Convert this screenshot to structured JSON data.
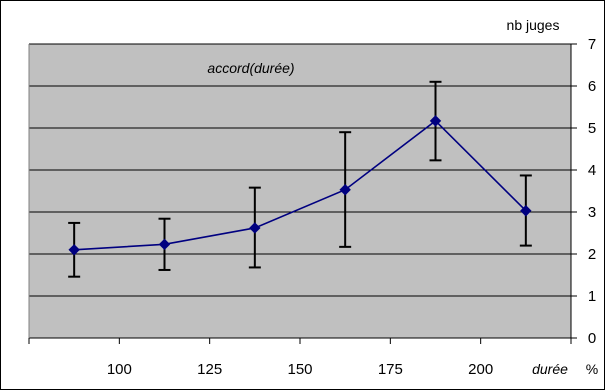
{
  "chart_data": {
    "type": "line",
    "title": "accord(durée)",
    "xlabel": "durée",
    "xunit": "%",
    "ylabel": "nb juges",
    "x": [
      87.5,
      112.5,
      137.5,
      162.5,
      187.5,
      212.5
    ],
    "x_ticks": [
      100,
      125,
      150,
      175,
      200
    ],
    "xlim": [
      75,
      225
    ],
    "ylim": [
      0,
      7
    ],
    "y_ticks": [
      0,
      1,
      2,
      3,
      4,
      5,
      6,
      7
    ],
    "grid": true,
    "series": [
      {
        "values": [
          2.1,
          2.23,
          2.62,
          3.53,
          5.17,
          3.03
        ],
        "error_low": [
          1.46,
          1.62,
          1.68,
          2.17,
          4.23,
          2.2
        ],
        "error_high": [
          2.74,
          2.84,
          3.58,
          4.9,
          6.1,
          3.87
        ],
        "color": "#000080",
        "marker": "diamond"
      }
    ],
    "plot_background": "#c0c0c0",
    "grid_color": "#000000"
  }
}
